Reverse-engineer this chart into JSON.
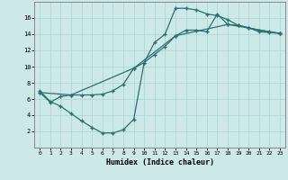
{
  "xlabel": "Humidex (Indice chaleur)",
  "background_color": "#cce8e8",
  "line_color": "#2a7070",
  "xlim": [
    -0.5,
    23.5
  ],
  "ylim": [
    0,
    18
  ],
  "xticks": [
    0,
    1,
    2,
    3,
    4,
    5,
    6,
    7,
    8,
    9,
    10,
    11,
    12,
    13,
    14,
    15,
    16,
    17,
    18,
    19,
    20,
    21,
    22,
    23
  ],
  "yticks": [
    2,
    4,
    6,
    8,
    10,
    12,
    14,
    16
  ],
  "line1_x": [
    0,
    1,
    2,
    3,
    4,
    5,
    6,
    7,
    8,
    9,
    10,
    11,
    12,
    13,
    14,
    15,
    16,
    17,
    18,
    19,
    20,
    21,
    22,
    23
  ],
  "line1_y": [
    7.0,
    5.7,
    5.1,
    4.2,
    3.3,
    2.5,
    1.8,
    1.8,
    2.2,
    3.5,
    10.5,
    13.0,
    14.0,
    17.2,
    17.2,
    17.0,
    16.5,
    16.3,
    15.8,
    15.1,
    14.8,
    14.3,
    14.2,
    14.1
  ],
  "line2_x": [
    0,
    1,
    2,
    3,
    4,
    5,
    6,
    7,
    8,
    9,
    10,
    11,
    12,
    13,
    14,
    15,
    16,
    17,
    18,
    19,
    20,
    21,
    22,
    23
  ],
  "line2_y": [
    6.8,
    5.6,
    6.3,
    6.5,
    6.5,
    6.5,
    6.6,
    7.0,
    7.8,
    9.8,
    10.5,
    11.5,
    12.5,
    13.8,
    14.5,
    14.5,
    14.3,
    16.5,
    15.2,
    15.1,
    14.8,
    14.5,
    14.3,
    14.1
  ],
  "line3_x": [
    0,
    3,
    9,
    13,
    18,
    23
  ],
  "line3_y": [
    6.8,
    6.5,
    9.8,
    13.8,
    15.2,
    14.1
  ]
}
